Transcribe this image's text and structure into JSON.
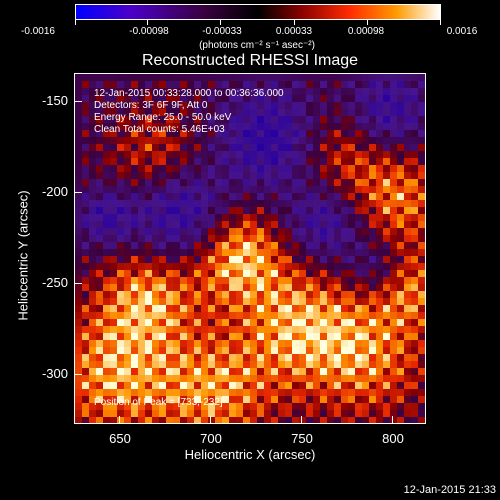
{
  "colorbar": {
    "tick_labels": [
      "-0.0016",
      "-0.00098",
      "-0.00033",
      "0.00033",
      "0.00098",
      "0.0016"
    ],
    "units": "(photons cm⁻² s⁻¹ asec⁻²)"
  },
  "title": "Reconstructed RHESSI Image",
  "annotations": {
    "time_range": "12-Jan-2015 00:33:28.000 to 00:36:36.000",
    "detectors": "Detectors: 3F 6F 9F, Att 0",
    "energy": "Energy Range: 25.0 - 50.0 keV",
    "clean": "Clean    Total counts: 5.46E+03",
    "peak": "Position of Peak = [733,-232]"
  },
  "chart_data": {
    "type": "heatmap",
    "title": "Reconstructed RHESSI Image",
    "xlabel": "Heliocentric X (arcsec)",
    "ylabel": "Heliocentric Y (arcsec)",
    "x_ticks": [
      650,
      700,
      750,
      800
    ],
    "y_ticks": [
      -150,
      -200,
      -250,
      -300
    ],
    "xlim": [
      625,
      817
    ],
    "ylim": [
      -327,
      -135
    ],
    "colorbar_range": [
      -0.0016,
      0.0016
    ],
    "peak_position": [
      733,
      -232
    ]
  },
  "timestamp": "12-Jan-2015 21:33",
  "colors": {
    "background": "#000000",
    "foreground": "#ffffff"
  }
}
